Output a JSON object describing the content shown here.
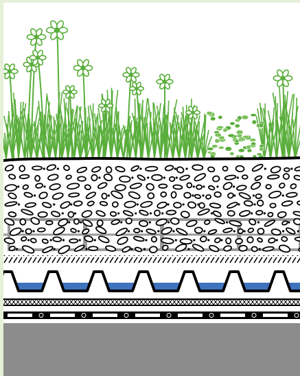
{
  "diagram": {
    "layers": [
      {
        "id": "vegetation",
        "color": "#5aae3c"
      },
      {
        "id": "substrate",
        "color": "#ffffff"
      },
      {
        "id": "filter-fleece",
        "color": "#000000"
      },
      {
        "id": "drainage-element",
        "color": "#000000"
      },
      {
        "id": "retained-water",
        "color": "#3f73bd"
      },
      {
        "id": "protection-mat",
        "color": "#000000"
      },
      {
        "id": "root-barrier",
        "color": "#000000"
      },
      {
        "id": "roof-deck",
        "color": "#8c8c8c"
      }
    ],
    "colors": {
      "frame": "#e6efd8",
      "plant": "#5aae3c",
      "water": "#3f73bd",
      "deck": "#8c8c8c",
      "grid": "#9a9a9a"
    }
  }
}
